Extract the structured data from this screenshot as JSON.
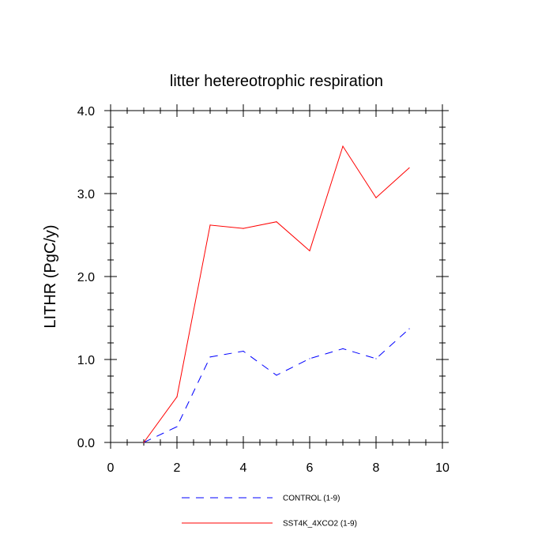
{
  "chart_data": {
    "type": "line",
    "title": "litter hetereotrophic respiration",
    "xlabel": "",
    "ylabel": "LITHR  (PgC/y)",
    "xlim": [
      0,
      10
    ],
    "ylim": [
      0,
      4
    ],
    "x_ticks": [
      0,
      2,
      4,
      6,
      8,
      10
    ],
    "x_tick_labels": [
      "0",
      "2",
      "4",
      "6",
      "8",
      "10"
    ],
    "y_ticks": [
      0,
      1,
      2,
      3,
      4
    ],
    "y_tick_labels": [
      "0.0",
      "1.0",
      "2.0",
      "3.0",
      "4.0"
    ],
    "grid": false,
    "legend_position": "bottom",
    "series": [
      {
        "name": "CONTROL (1-9)",
        "color": "#0000ff",
        "line_style": "dashed",
        "x": [
          1,
          2,
          3,
          4,
          5,
          6,
          7,
          8,
          9
        ],
        "values": [
          0.0,
          0.19,
          1.03,
          1.1,
          0.81,
          1.01,
          1.13,
          1.01,
          1.37
        ]
      },
      {
        "name": "SST4K_4XCO2 (1-9)",
        "color": "#ff0000",
        "line_style": "solid",
        "x": [
          1,
          2,
          3,
          4,
          5,
          6,
          7,
          8,
          9
        ],
        "values": [
          0.0,
          0.55,
          2.62,
          2.58,
          2.66,
          2.31,
          3.57,
          2.95,
          3.31
        ]
      }
    ]
  }
}
